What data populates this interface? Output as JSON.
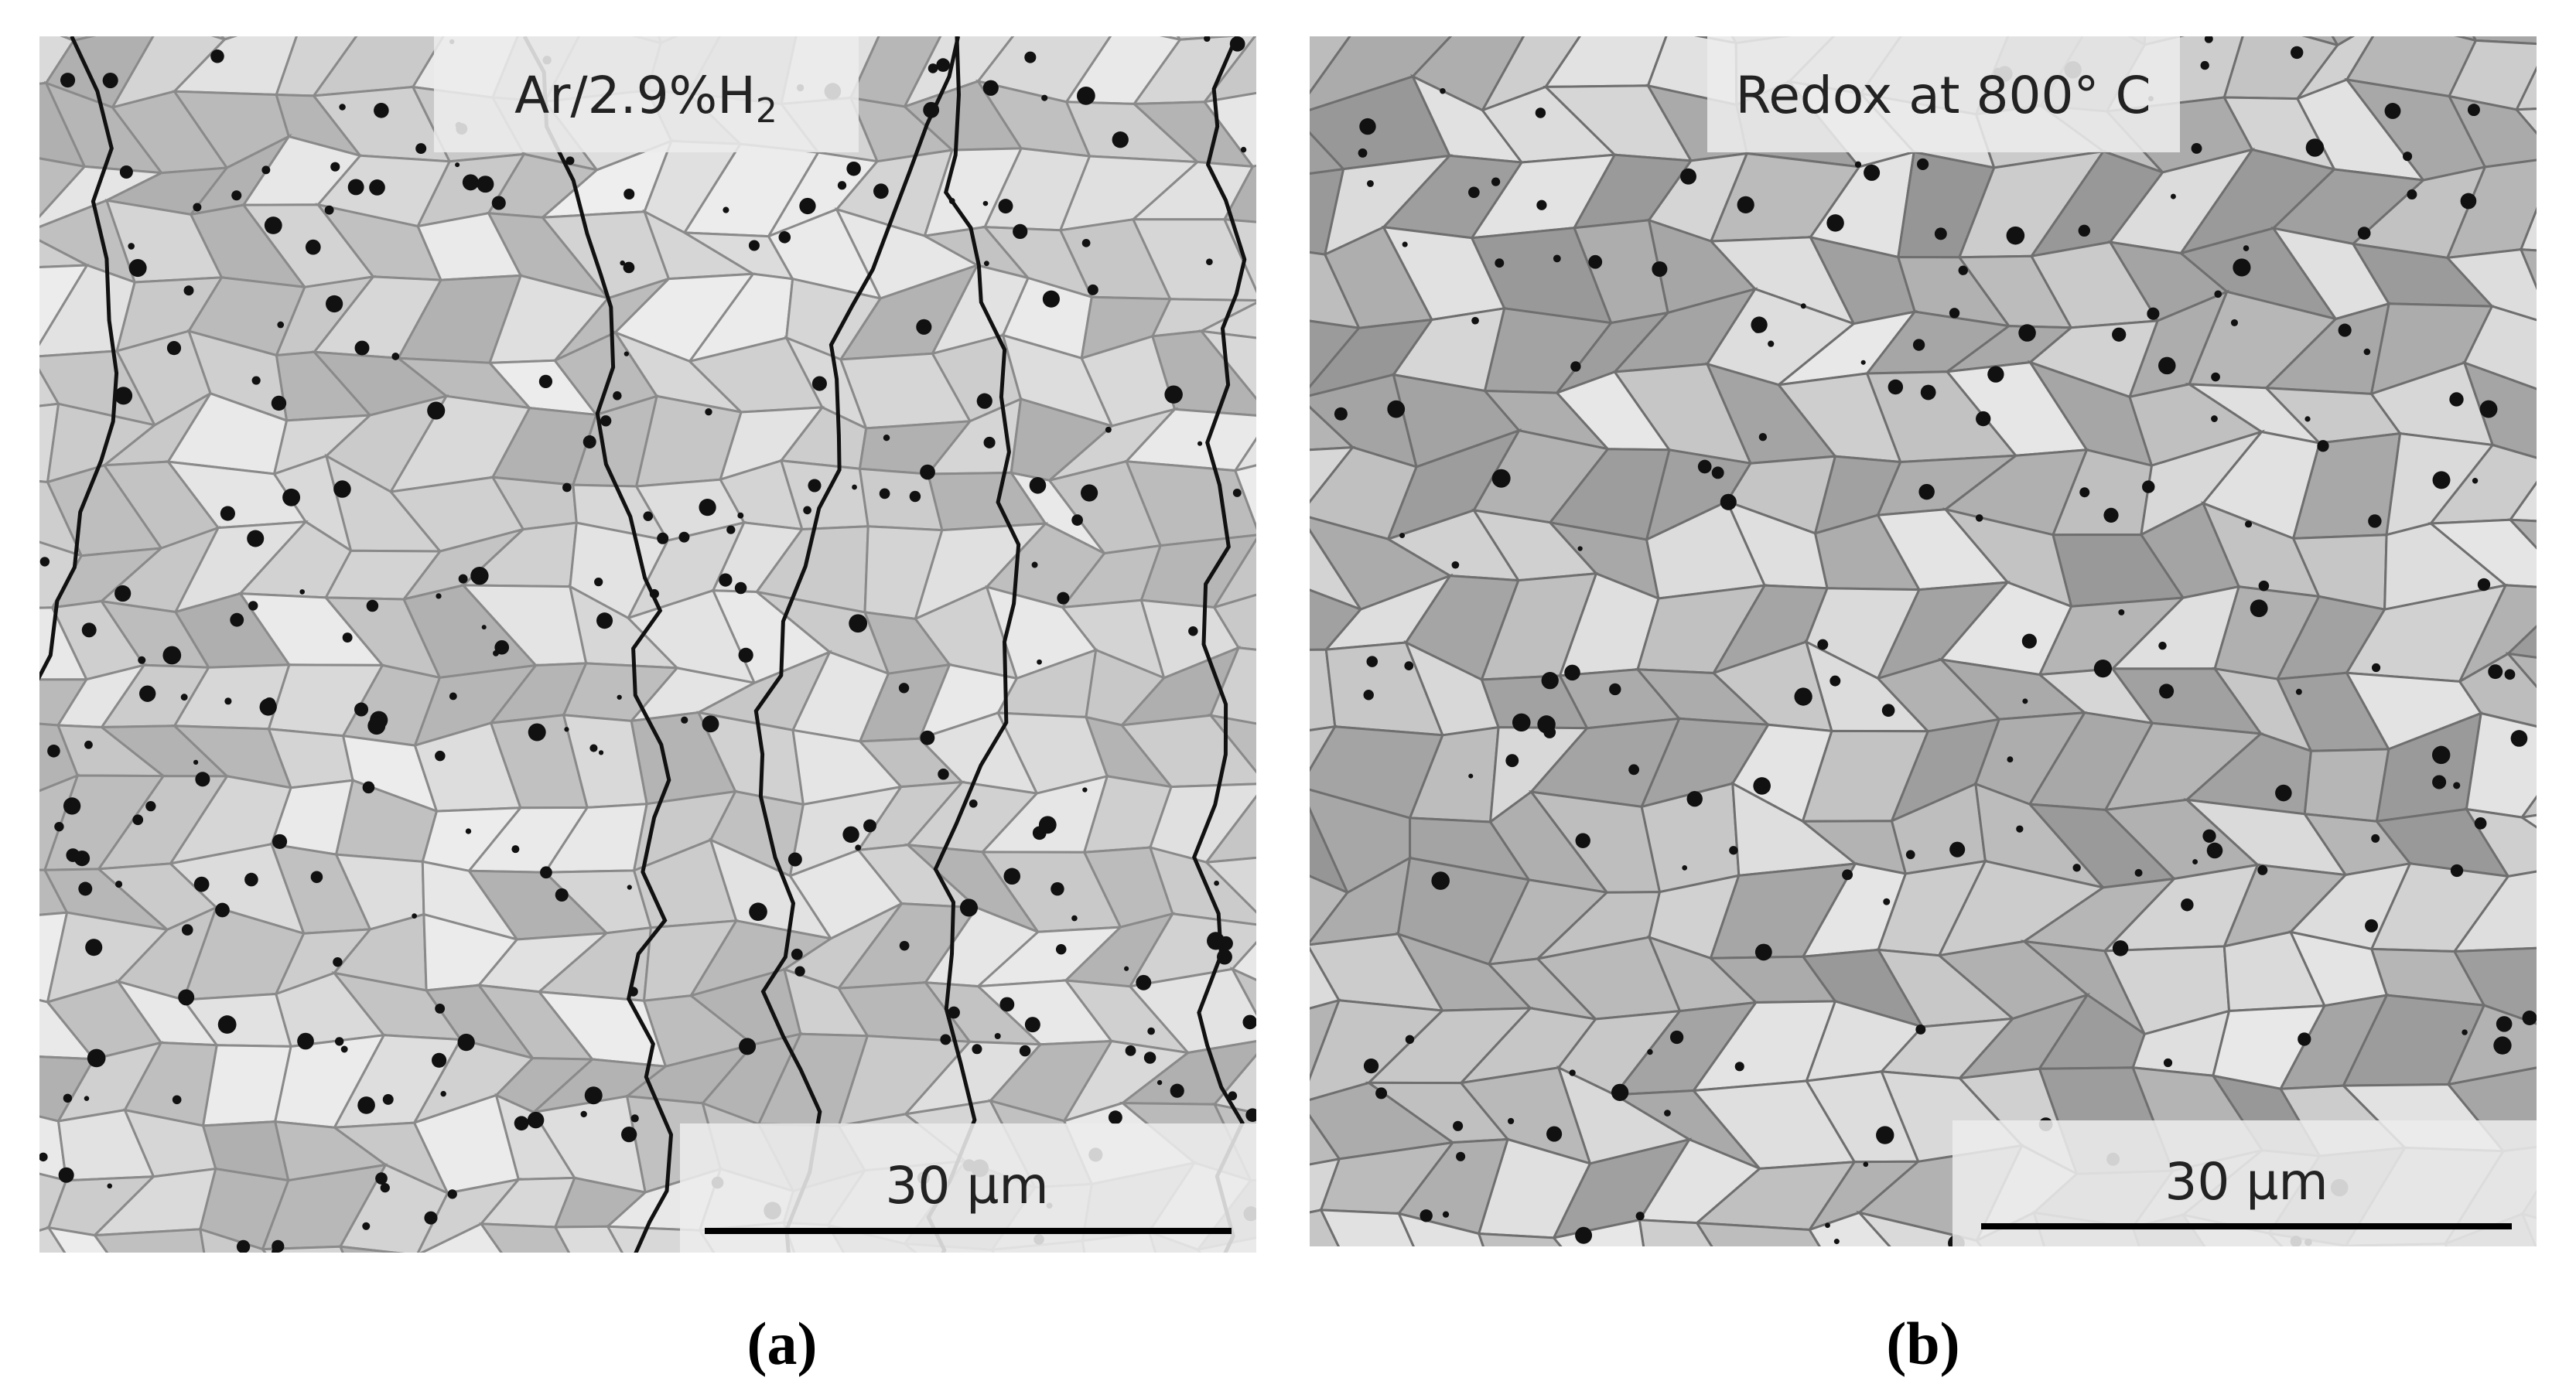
{
  "panels": [
    {
      "overlay_label": {
        "text": "Ar/2.9%H",
        "subscript": "2"
      },
      "scale_bar": "30 µm",
      "caption": "(a)"
    },
    {
      "overlay_label": {
        "text": "Redox at 800° C"
      },
      "scale_bar": "30 µm",
      "caption": "(b)"
    }
  ]
}
